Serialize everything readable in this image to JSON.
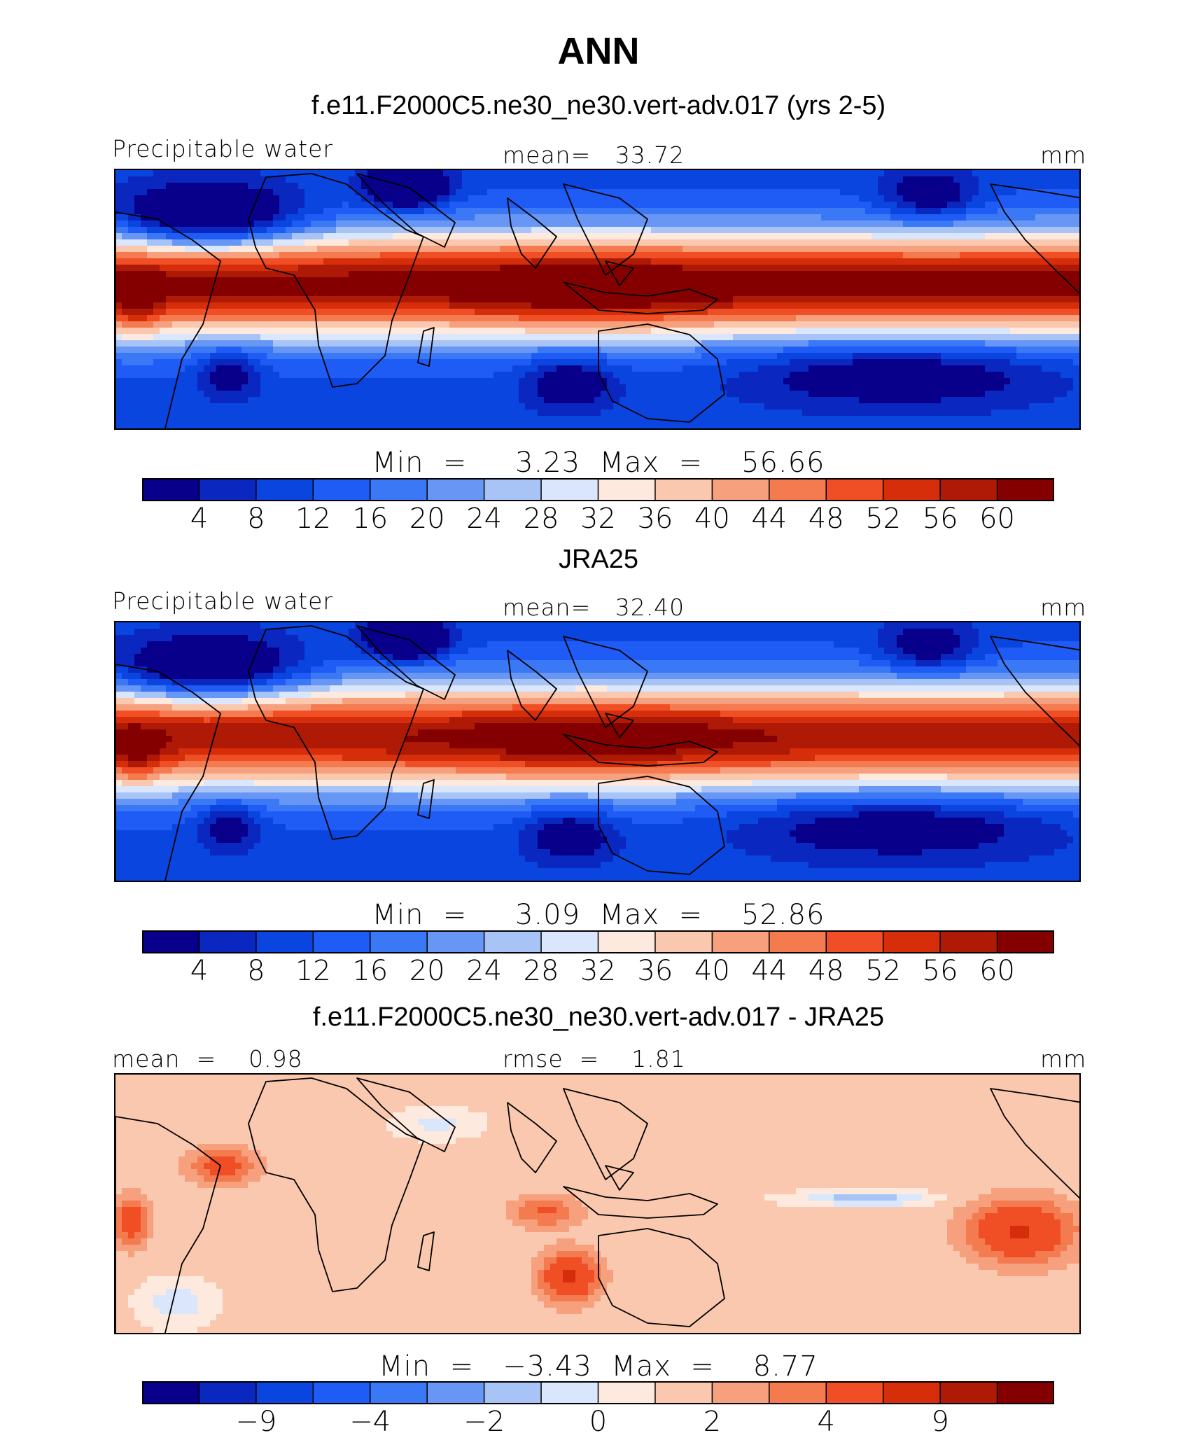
{
  "figure": {
    "title": "ANN"
  },
  "colors": {
    "palette": [
      "#08008a",
      "#0a27c0",
      "#0a45e0",
      "#1e5cf5",
      "#3a78f5",
      "#6896f5",
      "#a8c4f7",
      "#d9e6fb",
      "#fde9dd",
      "#f9c8ae",
      "#f6a07d",
      "#f47a50",
      "#f04e25",
      "#d62e0a",
      "#ae1a05",
      "#840000"
    ],
    "land_outline": "#000000"
  },
  "panels": [
    {
      "id": "model",
      "title": "f.e11.F2000C5.ne30_ne30.vert-adv.017 (yrs 2-5)",
      "left_label": "Precipitable water",
      "center_label": "mean=   33.72",
      "units": "mm",
      "minmax": "Min  =     3.23  Max  =    56.66",
      "colorbar_ticks": [
        "4",
        "8",
        "12",
        "16",
        "20",
        "24",
        "28",
        "32",
        "36",
        "40",
        "44",
        "48",
        "52",
        "56",
        "60"
      ],
      "field": "model"
    },
    {
      "id": "obs",
      "title": "JRA25",
      "left_label": "Precipitable water",
      "center_label": "mean=   32.40",
      "units": "mm",
      "minmax": "Min  =     3.09  Max  =    52.86",
      "colorbar_ticks": [
        "4",
        "8",
        "12",
        "16",
        "20",
        "24",
        "28",
        "32",
        "36",
        "40",
        "44",
        "48",
        "52",
        "56",
        "60"
      ],
      "field": "obs"
    },
    {
      "id": "diff",
      "title": "f.e11.F2000C5.ne30_ne30.vert-adv.017 - JRA25",
      "left_label": "mean  =    0.98",
      "center_label": "rmse  =    1.81",
      "units": "mm",
      "minmax": "Min  =   −3.43  Max  =    8.77",
      "colorbar_ticks": [
        "−9",
        "−4",
        "−2",
        "0",
        "2",
        "4",
        "9"
      ],
      "colorbar_tick_positions": [
        2,
        4,
        6,
        8,
        10,
        12,
        14
      ],
      "field": "diff"
    }
  ]
}
